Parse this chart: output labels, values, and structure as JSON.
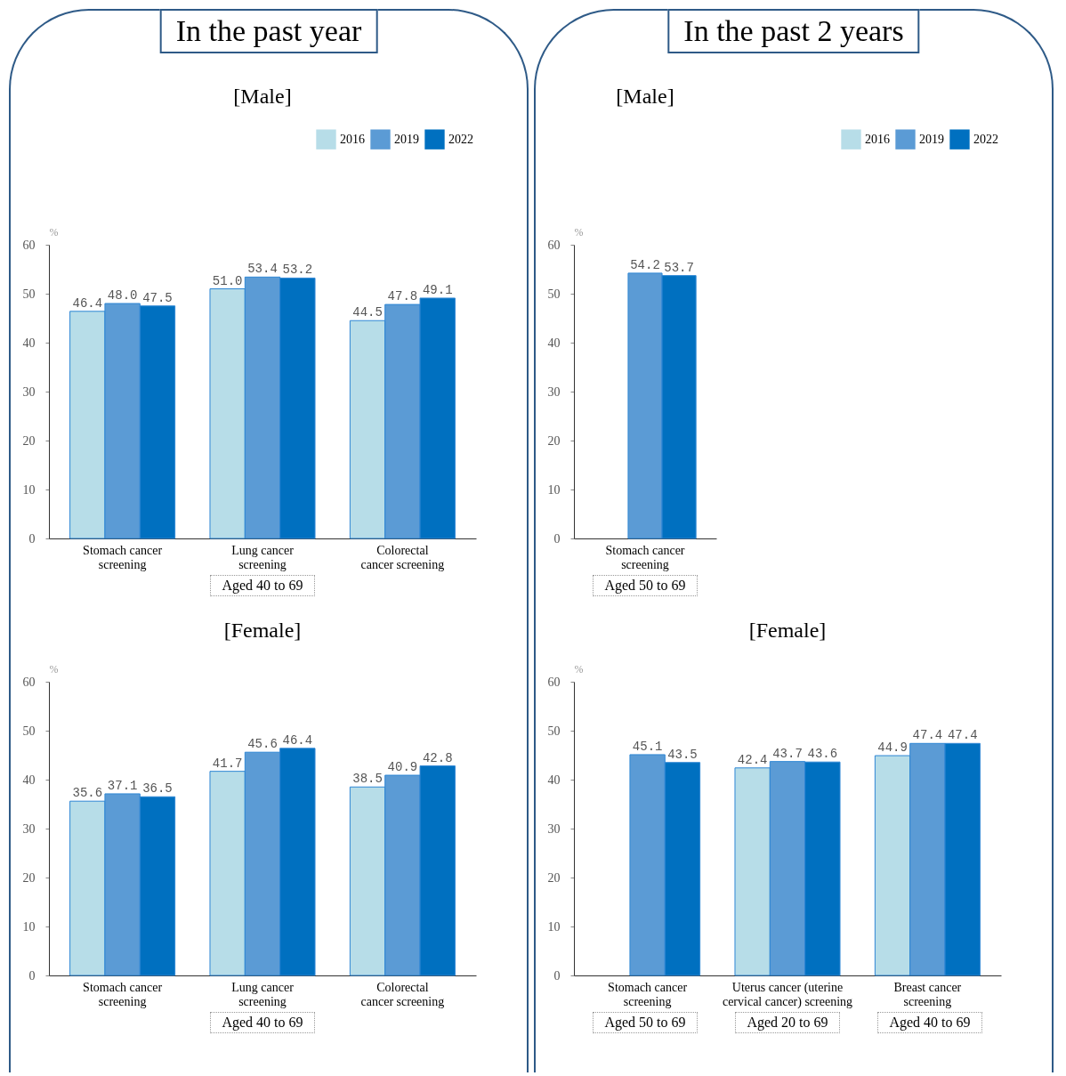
{
  "chart_data": [
    {
      "type": "bar",
      "subtitle": "In the past year",
      "title": "[Male]",
      "ylabel": "%",
      "categories": [
        "Stomach cancer screening",
        "Lung cancer screening",
        "Colorectal cancer screening"
      ],
      "series": [
        {
          "name": "2016",
          "color": "#b7dde8",
          "values": [
            46.4,
            51.0,
            44.5
          ],
          "value_labels": [
            "46.4",
            "51.0",
            "44.5"
          ]
        },
        {
          "name": "2019",
          "color": "#5b9bd5",
          "values": [
            48.0,
            53.4,
            47.8
          ],
          "value_labels": [
            "48.0",
            "53.4",
            "47.8"
          ]
        },
        {
          "name": "2022",
          "color": "#0070c0",
          "values": [
            47.5,
            53.2,
            49.1
          ],
          "value_labels": [
            "47.5",
            "53.2",
            "49.1"
          ]
        }
      ],
      "ylim": [
        0,
        60
      ],
      "yticks": [
        0,
        10,
        20,
        30,
        40,
        50,
        60
      ],
      "legend": "top right",
      "annotations": [
        "Aged 40 to 69"
      ]
    },
    {
      "type": "bar",
      "subtitle": "In the past 2 years",
      "title": "[Male]",
      "ylabel": "%",
      "categories": [
        "Stomach cancer screening"
      ],
      "series": [
        {
          "name": "2016",
          "color": "#b7dde8",
          "values": [
            null
          ],
          "value_labels": [
            null
          ]
        },
        {
          "name": "2019",
          "color": "#5b9bd5",
          "values": [
            54.2
          ],
          "value_labels": [
            "54.2"
          ]
        },
        {
          "name": "2022",
          "color": "#0070c0",
          "values": [
            53.7
          ],
          "value_labels": [
            "53.7"
          ]
        }
      ],
      "ylim": [
        0,
        60
      ],
      "yticks": [
        0,
        10,
        20,
        30,
        40,
        50,
        60
      ],
      "legend": "top right",
      "annotations": [
        "Aged 50 to 69"
      ]
    },
    {
      "type": "bar",
      "title": "[Female]",
      "ylabel": "%",
      "categories": [
        "Stomach cancer screening",
        "Lung cancer screening",
        "Colorectal cancer screening"
      ],
      "series": [
        {
          "name": "2016",
          "color": "#b7dde8",
          "values": [
            35.6,
            41.7,
            38.5
          ],
          "value_labels": [
            "35.6",
            "41.7",
            "38.5"
          ]
        },
        {
          "name": "2019",
          "color": "#5b9bd5",
          "values": [
            37.1,
            45.6,
            40.9
          ],
          "value_labels": [
            "37.1",
            "45.6",
            "40.9"
          ]
        },
        {
          "name": "2022",
          "color": "#0070c0",
          "values": [
            36.5,
            46.4,
            42.8
          ],
          "value_labels": [
            "36.5",
            "46.4",
            "42.8"
          ]
        }
      ],
      "ylim": [
        0,
        60
      ],
      "yticks": [
        0,
        10,
        20,
        30,
        40,
        50,
        60
      ],
      "annotations": [
        "Aged 40 to 69"
      ]
    },
    {
      "type": "bar",
      "title": "[Female]",
      "ylabel": "%",
      "categories": [
        "Stomach cancer screening",
        "Uterus cancer (uterine cervical cancer) screening",
        "Breast cancer screening"
      ],
      "series": [
        {
          "name": "2016",
          "color": "#b7dde8",
          "values": [
            null,
            42.4,
            44.9
          ],
          "value_labels": [
            null,
            "42.4",
            "44.9"
          ]
        },
        {
          "name": "2019",
          "color": "#5b9bd5",
          "values": [
            45.1,
            43.7,
            47.4
          ],
          "value_labels": [
            "45.1",
            "43.7",
            "47.4"
          ]
        },
        {
          "name": "2022",
          "color": "#0070c0",
          "values": [
            43.5,
            43.6,
            47.4
          ],
          "value_labels": [
            "43.5",
            "43.6",
            "47.4"
          ]
        }
      ],
      "ylim": [
        0,
        60
      ],
      "yticks": [
        0,
        10,
        20,
        30,
        40,
        50,
        60
      ],
      "annotations": [
        "Aged 50 to 69",
        "Aged 20 to 69",
        "Aged 40 to 69"
      ]
    }
  ]
}
